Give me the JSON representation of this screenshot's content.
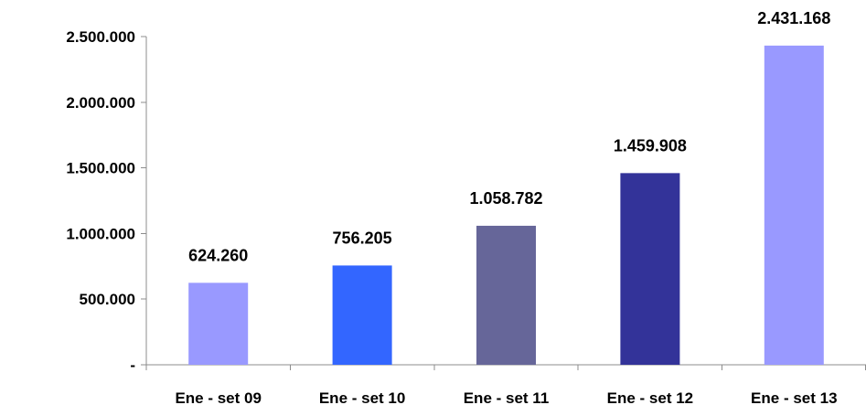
{
  "chart_data": {
    "type": "bar",
    "title": "",
    "xlabel": "",
    "ylabel": "",
    "categories": [
      "Ene - set 09",
      "Ene - set 10",
      "Ene - set 11",
      "Ene - set 12",
      "Ene - set 13"
    ],
    "values": [
      624260,
      756205,
      1058782,
      1459908,
      2431168
    ],
    "data_labels": [
      "624.260",
      "756.205",
      "1.058.782",
      "1.459.908",
      "2.431.168"
    ],
    "bar_colors": [
      "#9999ff",
      "#3366ff",
      "#666699",
      "#333399",
      "#9999ff"
    ],
    "ylim": [
      0,
      2500000
    ],
    "yticks": [
      0,
      500000,
      1000000,
      1500000,
      2000000,
      2500000
    ],
    "ytick_labels": [
      "-",
      "500.000",
      "1.000.000",
      "1.500.000",
      "2.000.000",
      "2.500.000"
    ],
    "grid": false,
    "legend": "none"
  }
}
